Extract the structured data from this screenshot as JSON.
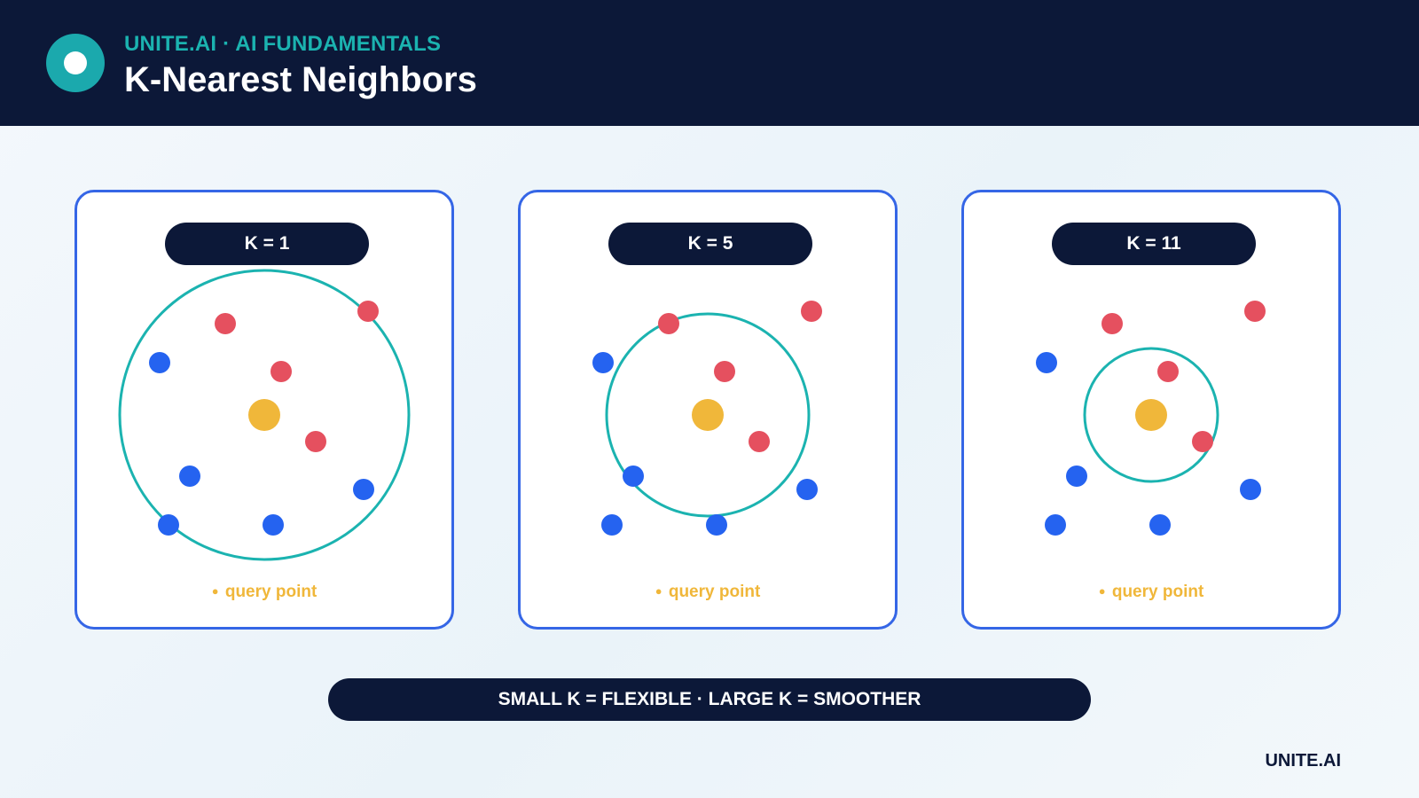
{
  "header": {
    "eyebrow": "UNITE.AI · AI FUNDAMENTALS",
    "title": "K-Nearest Neighbors"
  },
  "colors": {
    "navy": "#0c1838",
    "teal": "#1bb3b0",
    "panel_border": "#3566e6",
    "class_red": "#e5505f",
    "class_blue": "#2563f0",
    "query": "#f0b73a"
  },
  "legend": {
    "query_point": "query point"
  },
  "panels": [
    {
      "k_label": "K = 1"
    },
    {
      "k_label": "K = 5"
    },
    {
      "k_label": "K = 11"
    }
  ],
  "footer": {
    "takeaway": "SMALL K = FLEXIBLE · LARGE K = SMOOTHER",
    "brand": "UNITE.AI"
  }
}
